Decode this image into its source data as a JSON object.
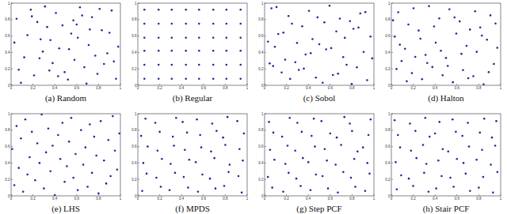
{
  "chart_data": [
    {
      "type": "scatter",
      "title": "(a) Random",
      "color": "#1f2a96",
      "marker": "dot",
      "xlim": [
        0,
        1
      ],
      "ylim": [
        0,
        1
      ],
      "xticks": [
        0,
        0.2,
        0.4,
        0.6,
        0.8,
        1
      ],
      "yticks": [
        0,
        0.2,
        0.4,
        0.6,
        0.8,
        1
      ],
      "x": [
        0.05,
        0.12,
        0.18,
        0.21,
        0.27,
        0.33,
        0.35,
        0.41,
        0.44,
        0.52,
        0.55,
        0.58,
        0.63,
        0.67,
        0.71,
        0.74,
        0.79,
        0.83,
        0.88,
        0.92,
        0.96,
        0.03,
        0.09,
        0.15,
        0.24,
        0.29,
        0.38,
        0.47,
        0.49,
        0.61,
        0.65,
        0.77,
        0.85,
        0.9,
        0.98,
        0.07,
        0.19,
        0.31,
        0.36,
        0.43,
        0.57,
        0.69,
        0.72,
        0.81,
        0.94,
        0.26,
        0.53,
        0.6
      ],
      "values": [
        0.81,
        0.34,
        0.92,
        0.12,
        0.56,
        0.71,
        0.18,
        0.88,
        0.45,
        0.07,
        0.63,
        0.31,
        0.95,
        0.22,
        0.49,
        0.83,
        0.14,
        0.67,
        0.39,
        0.91,
        0.08,
        0.52,
        0.03,
        0.61,
        0.77,
        0.41,
        0.27,
        0.73,
        0.16,
        0.58,
        0.85,
        0.36,
        0.26,
        0.64,
        0.47,
        0.19,
        0.84,
        0.96,
        0.55,
        0.11,
        0.79,
        0.02,
        0.68,
        0.93,
        0.29,
        0.33,
        0.44,
        0.74
      ]
    },
    {
      "type": "scatter",
      "title": "(b) Regular",
      "color": "#1f2a96",
      "marker": "dot",
      "xlim": [
        0,
        1
      ],
      "ylim": [
        0,
        1
      ],
      "xticks": [
        0,
        0.2,
        0.4,
        0.6,
        0.8,
        1
      ],
      "yticks": [
        0,
        0.2,
        0.4,
        0.6,
        0.8,
        1
      ],
      "x": [
        0.06,
        0.19,
        0.31,
        0.44,
        0.56,
        0.69,
        0.81,
        0.94,
        0.06,
        0.19,
        0.31,
        0.44,
        0.56,
        0.69,
        0.81,
        0.94,
        0.06,
        0.19,
        0.31,
        0.44,
        0.56,
        0.69,
        0.81,
        0.94,
        0.06,
        0.19,
        0.31,
        0.44,
        0.56,
        0.69,
        0.81,
        0.94,
        0.06,
        0.19,
        0.31,
        0.44,
        0.56,
        0.69,
        0.81,
        0.94,
        0.06,
        0.19,
        0.31,
        0.44,
        0.56,
        0.69,
        0.81,
        0.94
      ],
      "values": [
        0.08,
        0.08,
        0.08,
        0.08,
        0.08,
        0.08,
        0.08,
        0.08,
        0.25,
        0.25,
        0.25,
        0.25,
        0.25,
        0.25,
        0.25,
        0.25,
        0.42,
        0.42,
        0.42,
        0.42,
        0.42,
        0.42,
        0.42,
        0.42,
        0.58,
        0.58,
        0.58,
        0.58,
        0.58,
        0.58,
        0.58,
        0.58,
        0.75,
        0.75,
        0.75,
        0.75,
        0.75,
        0.75,
        0.75,
        0.75,
        0.92,
        0.92,
        0.92,
        0.92,
        0.92,
        0.92,
        0.92,
        0.92
      ]
    },
    {
      "type": "scatter",
      "title": "(c) Sobol",
      "color": "#1f2a96",
      "marker": "dot",
      "xlim": [
        0,
        1
      ],
      "ylim": [
        0,
        1
      ],
      "xticks": [
        0,
        0.2,
        0.4,
        0.6,
        0.8,
        1
      ],
      "yticks": [
        0,
        0.2,
        0.4,
        0.6,
        0.8,
        1
      ],
      "x": [
        0.5,
        0.75,
        0.25,
        0.375,
        0.875,
        0.625,
        0.125,
        0.188,
        0.688,
        0.938,
        0.438,
        0.313,
        0.813,
        0.563,
        0.063,
        0.094,
        0.594,
        0.844,
        0.344,
        0.469,
        0.969,
        0.719,
        0.219,
        0.156,
        0.656,
        0.906,
        0.406,
        0.281,
        0.781,
        0.531,
        0.031,
        0.047,
        0.547,
        0.797,
        0.297,
        0.422,
        0.922,
        0.672,
        0.172,
        0.234,
        0.734,
        0.984,
        0.484,
        0.359,
        0.859,
        0.609,
        0.109,
        0.078
      ],
      "values": [
        0.5,
        0.25,
        0.75,
        0.375,
        0.875,
        0.125,
        0.625,
        0.313,
        0.813,
        0.063,
        0.563,
        0.188,
        0.688,
        0.438,
        0.938,
        0.469,
        0.969,
        0.219,
        0.719,
        0.094,
        0.594,
        0.344,
        0.844,
        0.156,
        0.656,
        0.406,
        0.906,
        0.281,
        0.781,
        0.031,
        0.531,
        0.266,
        0.766,
        0.016,
        0.516,
        0.391,
        0.891,
        0.141,
        0.641,
        0.078,
        0.578,
        0.328,
        0.828,
        0.203,
        0.703,
        0.453,
        0.953,
        0.234
      ]
    },
    {
      "type": "scatter",
      "title": "(d) Halton",
      "color": "#1f2a96",
      "marker": "dot",
      "xlim": [
        0,
        1
      ],
      "ylim": [
        0,
        1
      ],
      "xticks": [
        0,
        0.2,
        0.4,
        0.6,
        0.8,
        1
      ],
      "yticks": [
        0,
        0.2,
        0.4,
        0.6,
        0.8,
        1
      ],
      "x": [
        0.5,
        0.25,
        0.75,
        0.125,
        0.625,
        0.375,
        0.875,
        0.063,
        0.563,
        0.313,
        0.813,
        0.188,
        0.688,
        0.438,
        0.938,
        0.031,
        0.531,
        0.281,
        0.781,
        0.156,
        0.656,
        0.406,
        0.906,
        0.094,
        0.594,
        0.344,
        0.844,
        0.219,
        0.719,
        0.469,
        0.969,
        0.016,
        0.516,
        0.266,
        0.766,
        0.141,
        0.641,
        0.391,
        0.891,
        0.078,
        0.578,
        0.328,
        0.828,
        0.203,
        0.703,
        0.453,
        0.953,
        0.047
      ],
      "values": [
        0.333,
        0.667,
        0.111,
        0.444,
        0.778,
        0.222,
        0.556,
        0.889,
        0.037,
        0.37,
        0.704,
        0.148,
        0.481,
        0.815,
        0.259,
        0.593,
        0.926,
        0.074,
        0.407,
        0.741,
        0.185,
        0.519,
        0.852,
        0.296,
        0.63,
        0.963,
        0.012,
        0.346,
        0.679,
        0.123,
        0.457,
        0.79,
        0.235,
        0.568,
        0.901,
        0.049,
        0.383,
        0.716,
        0.16,
        0.494,
        0.827,
        0.272,
        0.605,
        0.938,
        0.086,
        0.42,
        0.753,
        0.198
      ]
    },
    {
      "type": "scatter",
      "title": "(e) LHS",
      "color": "#1f2a96",
      "marker": "dot",
      "xlim": [
        0,
        1
      ],
      "ylim": [
        0,
        1
      ],
      "xticks": [
        0,
        0.2,
        0.4,
        0.6,
        0.8,
        1
      ],
      "yticks": [
        0,
        0.2,
        0.4,
        0.6,
        0.8,
        1
      ],
      "x": [
        0.01,
        0.03,
        0.05,
        0.07,
        0.09,
        0.11,
        0.13,
        0.15,
        0.17,
        0.19,
        0.22,
        0.24,
        0.26,
        0.28,
        0.3,
        0.32,
        0.34,
        0.36,
        0.38,
        0.4,
        0.43,
        0.45,
        0.47,
        0.49,
        0.51,
        0.53,
        0.55,
        0.57,
        0.59,
        0.61,
        0.64,
        0.66,
        0.68,
        0.7,
        0.72,
        0.74,
        0.76,
        0.78,
        0.8,
        0.82,
        0.85,
        0.87,
        0.89,
        0.91,
        0.93,
        0.95,
        0.97,
        0.99
      ],
      "values": [
        0.57,
        0.13,
        0.85,
        0.34,
        0.7,
        0.05,
        0.93,
        0.26,
        0.47,
        0.78,
        0.19,
        0.64,
        0.4,
        0.99,
        0.09,
        0.53,
        0.82,
        0.3,
        0.61,
        0.01,
        0.74,
        0.45,
        0.89,
        0.17,
        0.36,
        0.66,
        0.95,
        0.22,
        0.51,
        0.07,
        0.8,
        0.38,
        0.59,
        0.11,
        0.87,
        0.28,
        0.72,
        0.49,
        0.03,
        0.91,
        0.43,
        0.15,
        0.68,
        0.24,
        0.97,
        0.55,
        0.32,
        0.76
      ]
    },
    {
      "type": "scatter",
      "title": "(f) MPDS",
      "color": "#1f2a96",
      "marker": "dot",
      "xlim": [
        0,
        1
      ],
      "ylim": [
        0,
        1
      ],
      "xticks": [
        0,
        0.2,
        0.4,
        0.6,
        0.8,
        1
      ],
      "yticks": [
        0,
        0.2,
        0.4,
        0.6,
        0.8,
        1
      ],
      "x": [
        0.04,
        0.21,
        0.29,
        0.46,
        0.55,
        0.71,
        0.79,
        0.95,
        0.08,
        0.17,
        0.34,
        0.42,
        0.59,
        0.66,
        0.83,
        0.92,
        0.05,
        0.22,
        0.3,
        0.47,
        0.53,
        0.7,
        0.84,
        0.96,
        0.09,
        0.18,
        0.33,
        0.43,
        0.58,
        0.67,
        0.8,
        0.93,
        0.03,
        0.2,
        0.32,
        0.45,
        0.57,
        0.72,
        0.78,
        0.97,
        0.07,
        0.16,
        0.35,
        0.41,
        0.54,
        0.68,
        0.82,
        0.91
      ],
      "values": [
        0.06,
        0.11,
        0.07,
        0.1,
        0.05,
        0.09,
        0.12,
        0.04,
        0.27,
        0.22,
        0.28,
        0.23,
        0.26,
        0.21,
        0.29,
        0.24,
        0.4,
        0.45,
        0.39,
        0.44,
        0.41,
        0.46,
        0.38,
        0.43,
        0.6,
        0.55,
        0.61,
        0.56,
        0.59,
        0.54,
        0.62,
        0.57,
        0.73,
        0.78,
        0.72,
        0.77,
        0.74,
        0.79,
        0.71,
        0.76,
        0.94,
        0.89,
        0.95,
        0.9,
        0.93,
        0.88,
        0.96,
        0.91
      ]
    },
    {
      "type": "scatter",
      "title": "(g) Step PCF",
      "color": "#1f2a96",
      "marker": "dot",
      "xlim": [
        0,
        1
      ],
      "ylim": [
        0,
        1
      ],
      "xticks": [
        0,
        0.2,
        0.4,
        0.6,
        0.8,
        1
      ],
      "yticks": [
        0,
        0.2,
        0.4,
        0.6,
        0.8,
        1
      ],
      "x": [
        0.07,
        0.17,
        0.33,
        0.42,
        0.58,
        0.67,
        0.83,
        0.92,
        0.03,
        0.22,
        0.29,
        0.47,
        0.53,
        0.72,
        0.79,
        0.96,
        0.09,
        0.19,
        0.35,
        0.4,
        0.57,
        0.65,
        0.82,
        0.94,
        0.05,
        0.21,
        0.28,
        0.46,
        0.55,
        0.7,
        0.85,
        0.9,
        0.08,
        0.16,
        0.34,
        0.43,
        0.6,
        0.66,
        0.8,
        0.95,
        0.04,
        0.23,
        0.3,
        0.45,
        0.52,
        0.73,
        0.78,
        0.97
      ],
      "values": [
        0.1,
        0.05,
        0.12,
        0.07,
        0.09,
        0.04,
        0.11,
        0.06,
        0.23,
        0.28,
        0.21,
        0.26,
        0.24,
        0.29,
        0.22,
        0.27,
        0.44,
        0.39,
        0.46,
        0.41,
        0.43,
        0.38,
        0.45,
        0.4,
        0.56,
        0.61,
        0.55,
        0.6,
        0.57,
        0.62,
        0.54,
        0.59,
        0.77,
        0.72,
        0.78,
        0.73,
        0.76,
        0.71,
        0.79,
        0.74,
        0.9,
        0.95,
        0.89,
        0.94,
        0.91,
        0.96,
        0.88,
        0.93
      ]
    },
    {
      "type": "scatter",
      "title": "(h) Stair PCF",
      "color": "#1f2a96",
      "marker": "dot",
      "xlim": [
        0,
        1
      ],
      "ylim": [
        0,
        1
      ],
      "xticks": [
        0,
        0.2,
        0.4,
        0.6,
        0.8,
        1
      ],
      "yticks": [
        0,
        0.2,
        0.4,
        0.6,
        0.8,
        1
      ],
      "x": [
        0.05,
        0.2,
        0.34,
        0.41,
        0.57,
        0.72,
        0.8,
        0.93,
        0.09,
        0.16,
        0.3,
        0.46,
        0.54,
        0.68,
        0.84,
        0.97,
        0.04,
        0.23,
        0.32,
        0.43,
        0.6,
        0.66,
        0.78,
        0.91,
        0.08,
        0.18,
        0.29,
        0.47,
        0.52,
        0.71,
        0.83,
        0.95,
        0.06,
        0.22,
        0.35,
        0.4,
        0.59,
        0.65,
        0.81,
        0.92,
        0.03,
        0.17,
        0.31,
        0.44,
        0.56,
        0.7,
        0.85,
        0.96
      ],
      "values": [
        0.08,
        0.12,
        0.05,
        0.09,
        0.11,
        0.06,
        0.1,
        0.04,
        0.25,
        0.21,
        0.28,
        0.24,
        0.22,
        0.27,
        0.23,
        0.29,
        0.41,
        0.46,
        0.39,
        0.43,
        0.45,
        0.4,
        0.44,
        0.38,
        0.59,
        0.55,
        0.62,
        0.57,
        0.54,
        0.6,
        0.56,
        0.61,
        0.74,
        0.79,
        0.72,
        0.76,
        0.78,
        0.73,
        0.77,
        0.71,
        0.92,
        0.88,
        0.95,
        0.9,
        0.93,
        0.89,
        0.94,
        0.91
      ]
    }
  ]
}
